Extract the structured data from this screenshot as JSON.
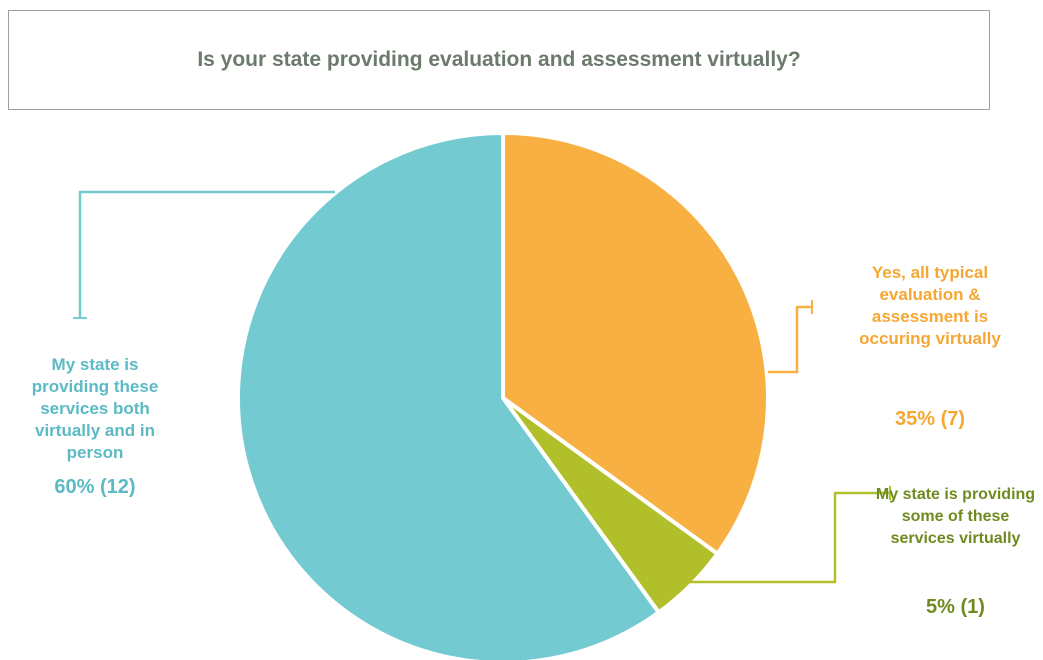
{
  "chart_data": {
    "type": "pie",
    "title": "Is your state providing evaluation and assessment virtually?",
    "categories": [
      "Yes, all typical evaluation & assessment is occuring virtually",
      "My state is providing some of these services virtually",
      "My state is providing these services both virtually and in person"
    ],
    "values": [
      35,
      5,
      60
    ],
    "value_labels": [
      "35% (7)",
      "5% (1)",
      "60% (12)"
    ],
    "colors": [
      "#f9b043",
      "#b1bf2b",
      "#73cbd1"
    ],
    "label_colors": [
      "#f6a733",
      "#6f8b1f",
      "#5bbac4"
    ]
  }
}
